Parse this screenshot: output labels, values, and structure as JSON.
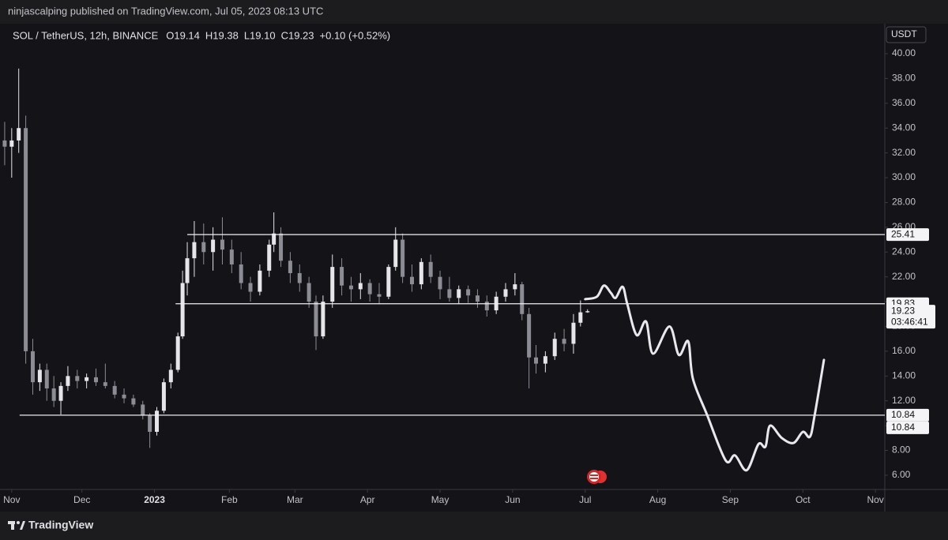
{
  "header": {
    "published": "ninjascalping published on TradingView.com, Jul 05, 2023 08:13 UTC"
  },
  "chart_data": {
    "type": "candlestick",
    "title": "SOL / TetherUS, 12h, BINANCE",
    "ohlc_legend": [
      "O19.14",
      "H19.38",
      "L19.10",
      "C19.23",
      "+0.10 (+0.52%)"
    ],
    "currency": "USDT",
    "x": [
      2,
      5,
      8,
      11,
      14,
      17,
      20,
      23,
      26,
      29,
      33,
      37,
      41,
      45,
      49,
      53,
      57,
      61,
      64,
      67,
      70,
      73,
      76,
      78,
      80,
      83,
      87,
      91,
      95,
      99,
      103,
      107,
      111,
      115,
      117,
      120,
      124,
      128,
      132,
      135,
      138,
      142,
      146,
      150,
      154,
      158,
      162,
      166,
      169,
      172,
      176,
      180,
      184,
      188,
      192,
      196,
      200,
      204,
      208,
      212,
      216,
      220,
      223,
      226,
      229,
      233,
      237,
      241,
      245,
      248,
      251
    ],
    "open": [
      33,
      32.5,
      33,
      34,
      16,
      13.5,
      14.5,
      13,
      12,
      13.2,
      14,
      13.6,
      13.9,
      13.5,
      13.2,
      12.5,
      12.2,
      11.7,
      10.8,
      9.5,
      11.2,
      13.5,
      14.5,
      17.2,
      21.5,
      23.5,
      24.8,
      24,
      25,
      24.2,
      23,
      21.5,
      20.8,
      22.5,
      24.6,
      25.5,
      23.3,
      22.3,
      21.5,
      20,
      17.2,
      20,
      22.8,
      21.3,
      21,
      21.5,
      20.6,
      20.4,
      22.8,
      25,
      22,
      21.4,
      23.2,
      22,
      21,
      20.3,
      21,
      20.5,
      20,
      19.3,
      20.4,
      21,
      21.4,
      19,
      15.5,
      15,
      15.6,
      17,
      16.6,
      18.3,
      19.14
    ],
    "high": [
      34.5,
      34,
      38.8,
      35,
      17,
      15,
      15,
      14,
      13.5,
      14.8,
      14.5,
      14.2,
      14.6,
      15,
      13.6,
      13,
      12.5,
      12,
      11,
      11.5,
      13.8,
      15,
      17.5,
      22.5,
      24.8,
      26.5,
      26.3,
      26,
      26.8,
      25,
      24,
      22,
      23,
      25,
      27.2,
      26,
      24,
      23,
      22,
      20.5,
      20.5,
      23.8,
      23.5,
      22,
      22.3,
      21.8,
      21.5,
      23,
      26,
      25.5,
      23,
      23.5,
      23.8,
      22.5,
      22,
      21.3,
      21.3,
      21,
      20.5,
      20.8,
      21.5,
      22.3,
      21.6,
      19.5,
      16.5,
      16,
      17.5,
      17.8,
      19,
      20.1,
      19.38
    ],
    "low": [
      31,
      30,
      32,
      15,
      12.5,
      12.8,
      12,
      11.5,
      10.9,
      12.8,
      13,
      13,
      13.2,
      13,
      12.2,
      11.8,
      11.5,
      10.5,
      8.2,
      9.2,
      11,
      13,
      14.3,
      17,
      20.5,
      22,
      23,
      22.5,
      23,
      22.3,
      21,
      20,
      20.5,
      22,
      24,
      22.8,
      21.5,
      20.8,
      19.5,
      16.1,
      17,
      19.5,
      20.5,
      20,
      20.2,
      20,
      19.8,
      20.2,
      22.5,
      21.5,
      20.8,
      21,
      21.5,
      20.2,
      20,
      19.8,
      19.9,
      19.5,
      18.8,
      19,
      20,
      20.5,
      18.5,
      13,
      14.2,
      14.3,
      15.3,
      16,
      15.8,
      18,
      19.1
    ],
    "close": [
      32.5,
      33,
      34,
      16,
      13.5,
      14.5,
      13,
      12,
      13.2,
      14,
      13.6,
      13.9,
      13.5,
      13.2,
      12.5,
      12.2,
      11.7,
      10.8,
      9.5,
      11.2,
      13.5,
      14.5,
      17.2,
      21.5,
      23.5,
      24.8,
      24,
      25,
      24.2,
      23,
      21.5,
      20.8,
      22.5,
      24.6,
      25.5,
      23.3,
      22.3,
      21.5,
      20,
      17.2,
      20,
      22.8,
      21.3,
      21,
      21.5,
      20.6,
      20.4,
      22.8,
      25,
      22,
      21.4,
      23.2,
      22,
      21,
      20.3,
      21,
      20.5,
      20,
      19.3,
      20.4,
      21,
      21.4,
      19,
      15.5,
      15,
      15.6,
      17,
      16.6,
      18.3,
      19.14,
      19.23
    ],
    "up_color": "#e6e6ea",
    "down_color": "#8c8c94",
    "xlim": [
      0,
      378
    ],
    "xticks": [
      {
        "value": 5,
        "label": "Nov"
      },
      {
        "value": 35,
        "label": "Dec"
      },
      {
        "value": 66,
        "label": "2023"
      },
      {
        "value": 98,
        "label": "Feb"
      },
      {
        "value": 126,
        "label": "Mar"
      },
      {
        "value": 157,
        "label": "Apr"
      },
      {
        "value": 188,
        "label": "May"
      },
      {
        "value": 219,
        "label": "Jun"
      },
      {
        "value": 250,
        "label": "Jul"
      },
      {
        "value": 281,
        "label": "Aug"
      },
      {
        "value": 312,
        "label": "Sep"
      },
      {
        "value": 343,
        "label": "Oct"
      },
      {
        "value": 374,
        "label": "Nov"
      }
    ],
    "ylim": [
      4.85,
      42.42
    ],
    "yticks": [
      {
        "value": 6,
        "label": "6.00"
      },
      {
        "value": 8,
        "label": "8.00"
      },
      {
        "value": 10,
        "label": "10.00"
      },
      {
        "value": 12,
        "label": "12.00"
      },
      {
        "value": 14,
        "label": "14.00"
      },
      {
        "value": 16,
        "label": "16.00"
      },
      {
        "value": 18,
        "label": "18.00"
      },
      {
        "value": 20,
        "label": "20.00"
      },
      {
        "value": 22,
        "label": "22.00"
      },
      {
        "value": 24,
        "label": "24.00"
      },
      {
        "value": 26,
        "label": "26.00"
      },
      {
        "value": 28,
        "label": "28.00"
      },
      {
        "value": 30,
        "label": "30.00"
      },
      {
        "value": 32,
        "label": "32.00"
      },
      {
        "value": 34,
        "label": "34.00"
      },
      {
        "value": 36,
        "label": "36.00"
      },
      {
        "value": 38,
        "label": "38.00"
      },
      {
        "value": 40,
        "label": "40.00"
      }
    ],
    "levels": [
      {
        "value": 25.41,
        "start": 80
      },
      {
        "value": 19.83,
        "start": 75
      },
      {
        "value": 10.84,
        "start": 8.4
      },
      {
        "value": 10.84,
        "start": 8.4
      }
    ],
    "countdown": "03:46:41",
    "projection": {
      "color": "#e8e8ee",
      "x": [
        250,
        255,
        258,
        261,
        263,
        266,
        268,
        272,
        276,
        279,
        286,
        290,
        294,
        296,
        302,
        310,
        314,
        319,
        324,
        327,
        329,
        334,
        339,
        343,
        346,
        348,
        352
      ],
      "y": [
        20.2,
        20.4,
        21.3,
        20.7,
        20.3,
        21.2,
        19.8,
        17.3,
        18.4,
        15.8,
        18,
        15.7,
        16.8,
        13.8,
        10.9,
        7.2,
        7.6,
        6.4,
        8.5,
        8.3,
        10,
        9,
        8.6,
        9.5,
        9.1,
        10.8,
        15.3
      ]
    }
  },
  "footer": {
    "brand": "TradingView"
  }
}
